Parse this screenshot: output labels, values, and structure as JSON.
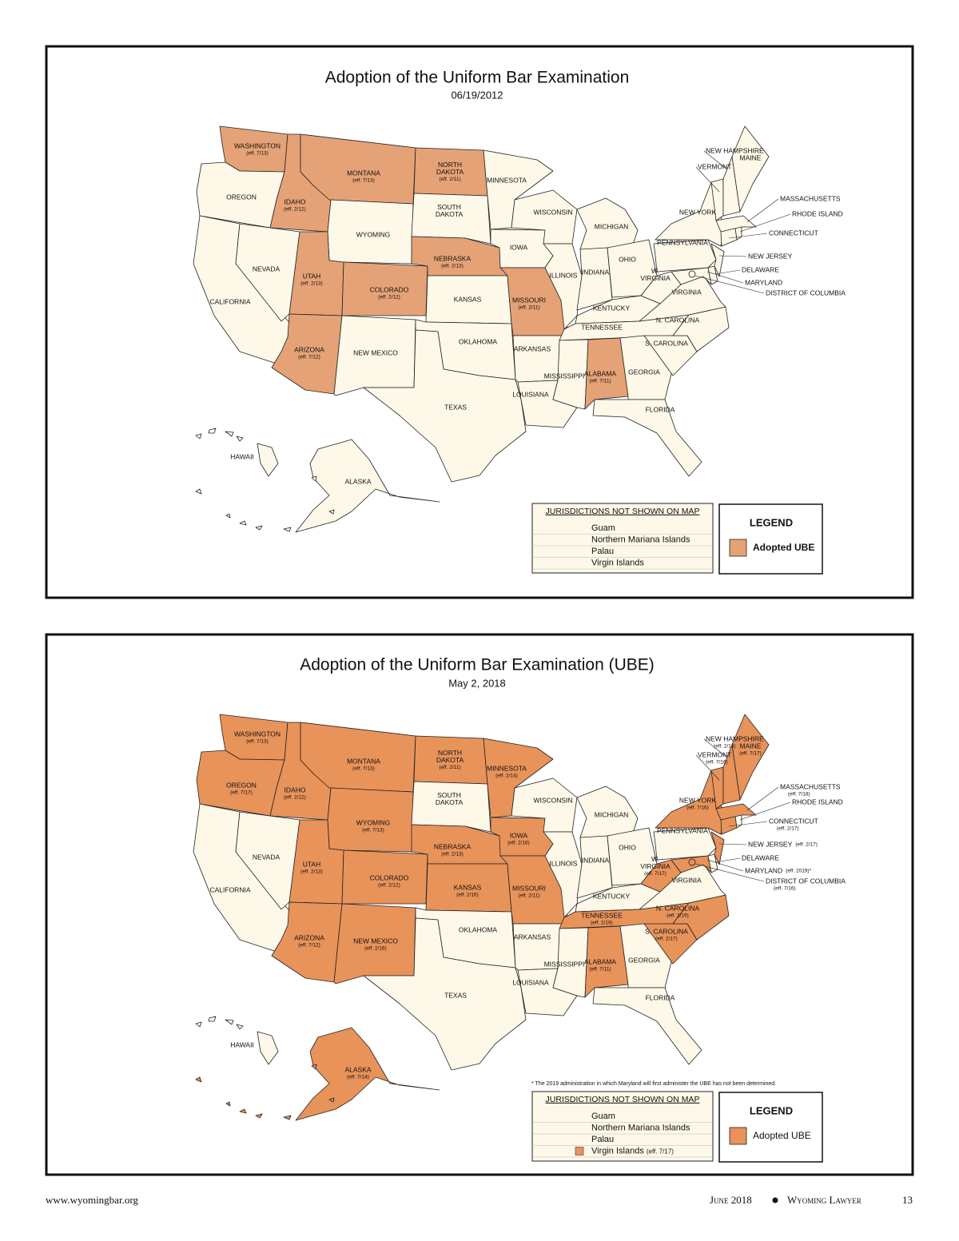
{
  "maps": [
    {
      "title": "Adoption of the Uniform Bar Examination",
      "date": "06/19/2012",
      "fill": "#fdf8e8",
      "states": [
        {
          "name": "WASHINGTON",
          "note": "(eff. 7/13)",
          "adopted": true
        },
        {
          "name": "OREGON",
          "adopted": false
        },
        {
          "name": "CALIFORNIA",
          "adopted": false
        },
        {
          "name": "IDAHO",
          "note": "(eff. 2/12)",
          "adopted": true
        },
        {
          "name": "NEVADA",
          "adopted": false
        },
        {
          "name": "MONTANA",
          "note": "(eff. 7/13)",
          "adopted": true
        },
        {
          "name": "WYOMING",
          "adopted": false
        },
        {
          "name": "UTAH",
          "note": "(eff. 2/13)",
          "adopted": true
        },
        {
          "name": "COLORADO",
          "note": "(eff. 2/12)",
          "adopted": true
        },
        {
          "name": "ARIZONA",
          "note": "(eff. 7/12)",
          "adopted": true
        },
        {
          "name": "NEW MEXICO",
          "adopted": false
        },
        {
          "name": [
            "NORTH",
            "DAKOTA"
          ],
          "note": "(eff. 2/11)",
          "adopted": true
        },
        {
          "name": [
            "SOUTH",
            "DAKOTA"
          ],
          "adopted": false
        },
        {
          "name": "NEBRASKA",
          "note": "(eff. 2/13)",
          "adopted": true
        },
        {
          "name": "KANSAS",
          "adopted": false
        },
        {
          "name": "OKLAHOMA",
          "adopted": false
        },
        {
          "name": "TEXAS",
          "adopted": false
        },
        {
          "name": "MINNESOTA",
          "adopted": false
        },
        {
          "name": "IOWA",
          "adopted": false
        },
        {
          "name": "MISSOURI",
          "note": "(eff. 2/11)",
          "adopted": true
        },
        {
          "name": "ARKANSAS",
          "adopted": false
        },
        {
          "name": "LOUISIANA",
          "adopted": false
        },
        {
          "name": "WISCONSIN",
          "adopted": false
        },
        {
          "name": "ILLINOIS",
          "adopted": false
        },
        {
          "name": "MICHIGAN",
          "adopted": false
        },
        {
          "name": "INDIANA",
          "adopted": false
        },
        {
          "name": "OHIO",
          "adopted": false
        },
        {
          "name": "KENTUCKY",
          "adopted": false
        },
        {
          "name": "TENNESSEE",
          "adopted": false
        },
        {
          "name": "MISSISSIPPI",
          "adopted": false
        },
        {
          "name": "ALABAMA",
          "note": "(eff. 7/11)",
          "adopted": true
        },
        {
          "name": "GEORGIA",
          "adopted": false
        },
        {
          "name": "FLORIDA",
          "adopted": false
        },
        {
          "name": "S. CAROLINA",
          "adopted": false
        },
        {
          "name": "N. CAROLINA",
          "adopted": false
        },
        {
          "name": "VIRGINIA",
          "adopted": false
        },
        {
          "name": [
            "W.",
            "VIRGINIA"
          ],
          "adopted": false
        },
        {
          "name": "PENNSYLVANIA",
          "adopted": false
        },
        {
          "name": "NEW YORK",
          "adopted": false
        },
        {
          "name": "MARYLAND",
          "adopted": false
        },
        {
          "name": "DELAWARE",
          "adopted": false
        },
        {
          "name": "NEW JERSEY",
          "adopted": false
        },
        {
          "name": "DISTRICT OF COLUMBIA",
          "adopted": false
        },
        {
          "name": "CONNECTICUT",
          "adopted": false
        },
        {
          "name": "RHODE ISLAND",
          "adopted": false
        },
        {
          "name": "MASSACHUSETTS",
          "adopted": false
        },
        {
          "name": "VERMONT",
          "adopted": false
        },
        {
          "name": "NEW HAMPSHIRE",
          "adopted": false
        },
        {
          "name": "MAINE",
          "adopted": false
        },
        {
          "name": "ALASKA",
          "adopted": false
        },
        {
          "name": "HAWAII",
          "adopted": false
        }
      ],
      "jurisdictions": {
        "heading": "JURISDICTIONS NOT SHOWN ON MAP",
        "items": [
          {
            "name": "Guam"
          },
          {
            "name": "Northern Mariana Islands"
          },
          {
            "name": "Palau"
          },
          {
            "name": "Virgin Islands"
          }
        ]
      },
      "legend": {
        "title": "LEGEND",
        "label": "Adopted UBE",
        "color": "#e5a276"
      }
    },
    {
      "title": "Adoption of the Uniform Bar Examination (UBE)",
      "date": "May 2, 2018",
      "fill": "#fdf8e8",
      "states": [
        {
          "name": "WASHINGTON",
          "note": "(eff. 7/13)",
          "adopted": true
        },
        {
          "name": "OREGON",
          "note": "(eff. 7/17)",
          "adopted": true
        },
        {
          "name": "CALIFORNIA",
          "adopted": false
        },
        {
          "name": "IDAHO",
          "note": "(eff. 2/12)",
          "adopted": true
        },
        {
          "name": "NEVADA",
          "adopted": false
        },
        {
          "name": "MONTANA",
          "note": "(eff. 7/13)",
          "adopted": true
        },
        {
          "name": "WYOMING",
          "note": "(eff. 7/13)",
          "adopted": true
        },
        {
          "name": "UTAH",
          "note": "(eff. 2/13)",
          "adopted": true
        },
        {
          "name": "COLORADO",
          "note": "(eff. 2/12)",
          "adopted": true
        },
        {
          "name": "ARIZONA",
          "note": "(eff. 7/12)",
          "adopted": true
        },
        {
          "name": "NEW MEXICO",
          "note": "(eff. 2/16)",
          "adopted": true
        },
        {
          "name": [
            "NORTH",
            "DAKOTA"
          ],
          "note": "(eff. 2/11)",
          "adopted": true
        },
        {
          "name": [
            "SOUTH",
            "DAKOTA"
          ],
          "adopted": false
        },
        {
          "name": "NEBRASKA",
          "note": "(eff. 2/13)",
          "adopted": true
        },
        {
          "name": "KANSAS",
          "note": "(eff. 2/16)",
          "adopted": true
        },
        {
          "name": "OKLAHOMA",
          "adopted": false
        },
        {
          "name": "TEXAS",
          "adopted": false
        },
        {
          "name": "MINNESOTA",
          "note": "(eff. 2/14)",
          "adopted": true
        },
        {
          "name": "IOWA",
          "note": "(eff. 2/16)",
          "adopted": true
        },
        {
          "name": "MISSOURI",
          "note": "(eff. 2/11)",
          "adopted": true
        },
        {
          "name": "ARKANSAS",
          "adopted": false
        },
        {
          "name": "LOUISIANA",
          "adopted": false
        },
        {
          "name": "WISCONSIN",
          "adopted": false
        },
        {
          "name": "ILLINOIS",
          "adopted": false
        },
        {
          "name": "MICHIGAN",
          "adopted": false
        },
        {
          "name": "INDIANA",
          "adopted": false
        },
        {
          "name": "OHIO",
          "adopted": false
        },
        {
          "name": "KENTUCKY",
          "adopted": false
        },
        {
          "name": "TENNESSEE",
          "note": "(eff. 2/19)",
          "adopted": true
        },
        {
          "name": "MISSISSIPPI",
          "adopted": false
        },
        {
          "name": "ALABAMA",
          "note": "(eff. 7/11)",
          "adopted": true
        },
        {
          "name": "GEORGIA",
          "adopted": false
        },
        {
          "name": "FLORIDA",
          "adopted": false
        },
        {
          "name": "S. CAROLINA",
          "note": "(eff. 2/17)",
          "adopted": true
        },
        {
          "name": "N. CAROLINA",
          "note": "(eff. 2/19)",
          "adopted": true
        },
        {
          "name": "VIRGINIA",
          "adopted": false
        },
        {
          "name": [
            "W.",
            "VIRGINIA"
          ],
          "note": "(eff. 7/17)",
          "adopted": true
        },
        {
          "name": "PENNSYLVANIA",
          "adopted": false
        },
        {
          "name": "NEW YORK",
          "note": "(eff. 7/16)",
          "adopted": true
        },
        {
          "name": "MARYLAND",
          "note": "(eff. 2019)*",
          "adopted": true
        },
        {
          "name": "DELAWARE",
          "adopted": false
        },
        {
          "name": "NEW JERSEY",
          "note": "(eff. 2/17)",
          "adopted": true
        },
        {
          "name": "DISTRICT OF COLUMBIA",
          "note": "(eff. 7/16)",
          "adopted": true
        },
        {
          "name": "CONNECTICUT",
          "note": "(eff. 2/17)",
          "adopted": true
        },
        {
          "name": "RHODE ISLAND",
          "adopted": false
        },
        {
          "name": "MASSACHUSETTS",
          "note": "(eff. 7/18)",
          "adopted": true
        },
        {
          "name": "VERMONT",
          "note": "(eff. 7/16)",
          "adopted": true
        },
        {
          "name": "NEW HAMPSHIRE",
          "note": "(eff. 2/14)",
          "adopted": true
        },
        {
          "name": "MAINE",
          "note": "(eff. 7/17)",
          "adopted": true
        },
        {
          "name": "ALASKA",
          "note": "(eff. 7/14)",
          "adopted": true
        },
        {
          "name": "HAWAII",
          "adopted": false
        }
      ],
      "footnote": "* The 2019 administration in which Maryland will first administer the UBE has not been determined.",
      "jurisdictions": {
        "heading": "JURISDICTIONS NOT SHOWN ON MAP",
        "items": [
          {
            "name": "Guam"
          },
          {
            "name": "Northern Mariana Islands"
          },
          {
            "name": "Palau"
          },
          {
            "name": "Virgin Islands",
            "note": "(eff. 7/17)",
            "adopted": true
          }
        ]
      },
      "legend": {
        "title": "LEGEND",
        "label": "Adopted UBE",
        "color": "#e8935a"
      }
    }
  ],
  "footer": {
    "site": "www.wyomingbar.org",
    "issue": "June 2018",
    "magazine": "Wyoming Lawyer",
    "page": 13
  }
}
